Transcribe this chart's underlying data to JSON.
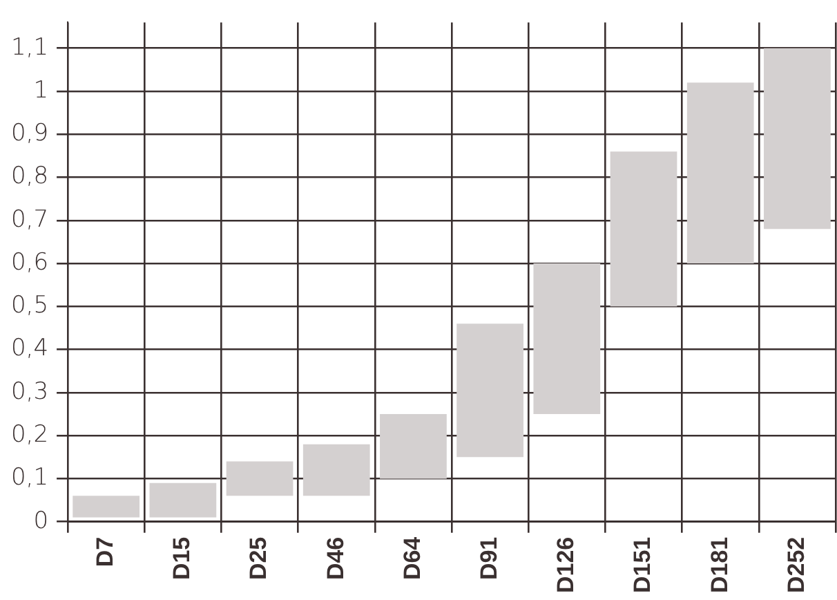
{
  "chart_data": {
    "type": "bar",
    "categories": [
      "D7",
      "D15",
      "D25",
      "D46",
      "D64",
      "D91",
      "D126",
      "D151",
      "D181",
      "D252"
    ],
    "base": [
      0.01,
      0.01,
      0.06,
      0.06,
      0.1,
      0.15,
      0.25,
      0.5,
      0.6,
      0.68
    ],
    "values": [
      0.05,
      0.08,
      0.08,
      0.12,
      0.15,
      0.31,
      0.35,
      0.36,
      0.42,
      0.42
    ],
    "color": "#d4d0d0",
    "ylim": [
      0,
      1.16
    ],
    "yticks": [
      0,
      {
        "value": 0.1,
        "label": "0,1"
      },
      {
        "value": 0.2,
        "label": "0,2"
      },
      {
        "value": 0.3,
        "label": "0,3"
      },
      {
        "value": 0.4,
        "label": "0,4"
      },
      {
        "value": 0.5,
        "label": "0,5"
      },
      {
        "value": 0.6,
        "label": "0,6"
      },
      {
        "value": 0.7,
        "label": "0,7"
      },
      {
        "value": 0.8,
        "label": "0,8"
      },
      {
        "value": 0.9,
        "label": "0,9"
      },
      1,
      {
        "value": 1.1,
        "label": "1,1"
      }
    ],
    "grid": true,
    "legend": false
  }
}
